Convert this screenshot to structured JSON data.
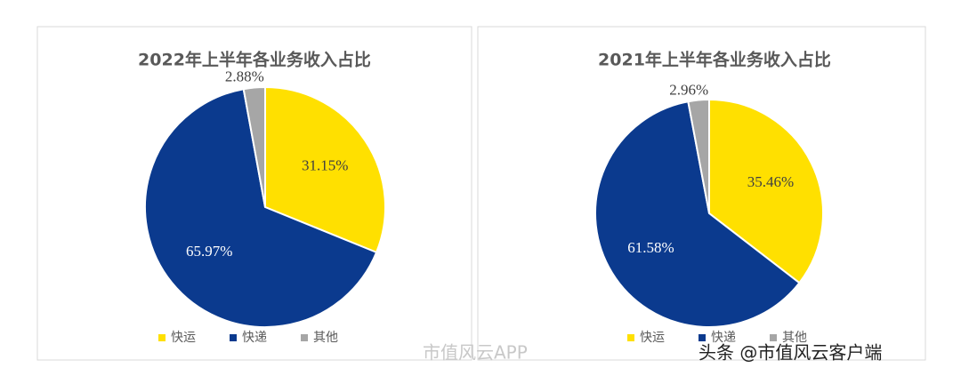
{
  "chart_data": [
    {
      "type": "pie",
      "title": "2022年上半年各业务收入占比",
      "categories": [
        "快运",
        "快递",
        "其他"
      ],
      "values": [
        31.15,
        65.97,
        2.88
      ],
      "value_labels": [
        "31.15%",
        "65.97%",
        "2.88%"
      ],
      "colors": [
        "#FFE000",
        "#0B3A8E",
        "#A6A6A6"
      ]
    },
    {
      "type": "pie",
      "title": "2021年上半年各业务收入占比",
      "categories": [
        "快运",
        "快递",
        "其他"
      ],
      "values": [
        35.46,
        61.58,
        2.96
      ],
      "value_labels": [
        "35.46%",
        "61.58%",
        "2.96%"
      ],
      "colors": [
        "#FFE000",
        "#0B3A8E",
        "#A6A6A6"
      ]
    }
  ],
  "watermarks": [
    "市值风云APP",
    "头条 @市值风云客户端"
  ]
}
